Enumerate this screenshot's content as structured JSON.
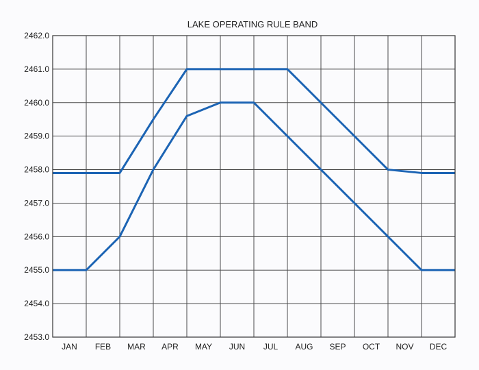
{
  "chart_data": {
    "type": "line",
    "title": "LAKE OPERATING RULE BAND",
    "xlabel": "",
    "ylabel": "",
    "categories": [
      "JAN",
      "FEB",
      "MAR",
      "APR",
      "MAY",
      "JUN",
      "JUL",
      "AUG",
      "SEP",
      "OCT",
      "NOV",
      "DEC"
    ],
    "x": [
      0,
      1,
      2,
      3,
      4,
      5,
      6,
      7,
      8,
      9,
      10,
      11,
      12
    ],
    "ylim": [
      2453.0,
      2462.0
    ],
    "yticks": [
      "2453.0",
      "2454.0",
      "2455.0",
      "2456.0",
      "2457.0",
      "2458.0",
      "2459.0",
      "2460.0",
      "2461.0",
      "2462.0"
    ],
    "grid": true,
    "legend": "none",
    "series": [
      {
        "values": [
          2457.9,
          2457.9,
          2457.9,
          2459.5,
          2461.0,
          2461.0,
          2461.0,
          2461.0,
          2460.0,
          2459.0,
          2458.0,
          2457.9,
          2457.9
        ],
        "color": "#1c64b4"
      },
      {
        "values": [
          2455.0,
          2455.0,
          2456.0,
          2458.0,
          2459.6,
          2460.0,
          2460.0,
          2459.0,
          2458.0,
          2457.0,
          2456.0,
          2455.0,
          2455.0
        ],
        "color": "#1c64b4"
      }
    ]
  }
}
